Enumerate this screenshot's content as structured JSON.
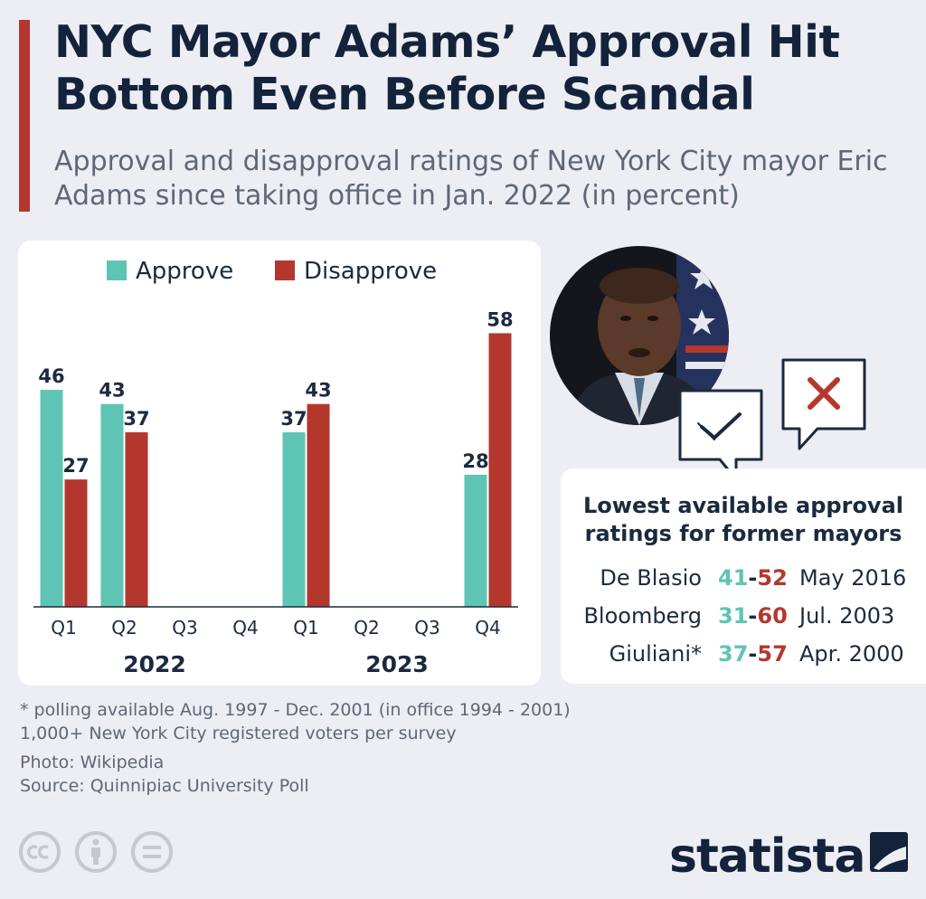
{
  "title": "NYC Mayor Adams’ Approval Hit Bottom Even Before Scandal",
  "subtitle": "Approval and disapproval ratings of New York City mayor Eric Adams since taking office in Jan. 2022 (in percent)",
  "chart_data": {
    "type": "bar",
    "categories": [
      "Q1",
      "Q2",
      "Q3",
      "Q4",
      "Q1",
      "Q2",
      "Q3",
      "Q4"
    ],
    "groups": [
      {
        "label": "2022",
        "quarters": [
          "Q1",
          "Q2",
          "Q3",
          "Q4"
        ]
      },
      {
        "label": "2023",
        "quarters": [
          "Q1",
          "Q2",
          "Q3",
          "Q4"
        ]
      }
    ],
    "series": [
      {
        "name": "Approve",
        "color": "#5ec4b4",
        "values": [
          46,
          43,
          null,
          null,
          37,
          null,
          null,
          28
        ]
      },
      {
        "name": "Disapprove",
        "color": "#b4372d",
        "values": [
          27,
          37,
          null,
          null,
          43,
          null,
          null,
          58
        ]
      }
    ],
    "ylim": [
      0,
      60
    ],
    "grid": false,
    "legend": "top-center",
    "xlabel": "",
    "ylabel": ""
  },
  "former_mayors": {
    "title_line1": "Lowest available approval",
    "title_line2": "ratings for former mayors",
    "rows": [
      {
        "name": "De Blasio",
        "approve": "41",
        "disapprove": "52",
        "date": "May 2016"
      },
      {
        "name": "Bloomberg",
        "approve": "31",
        "disapprove": "60",
        "date": "Jul. 2003"
      },
      {
        "name": "Giuliani*",
        "approve": "37",
        "disapprove": "57",
        "date": "Apr. 2000"
      }
    ],
    "dash": "-"
  },
  "notes": {
    "footnote": "* polling available Aug. 1997 - Dec. 2001 (in office 1994 - 2001)",
    "sample": "1,000+ New York City registered voters per survey",
    "photo": "Photo: Wikipedia",
    "source": "Source: Quinnipiac University Poll"
  },
  "brand": "statista",
  "icons": {
    "approve_bubble": "check-mark-icon",
    "disapprove_bubble": "x-mark-icon",
    "license": [
      "cc-icon",
      "attribution-icon",
      "no-derivatives-icon"
    ]
  }
}
